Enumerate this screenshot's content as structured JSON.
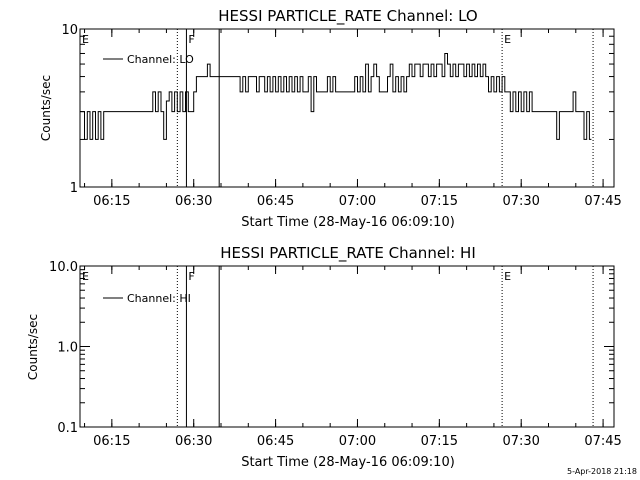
{
  "chart_data": [
    {
      "type": "line",
      "title": "HESSI PARTICLE_RATE Channel: LO",
      "xlabel": "Start Time (28-May-16 06:09:10)",
      "ylabel": "Counts/sec",
      "yscale": "log",
      "ylim": [
        1,
        10
      ],
      "xlim": [
        "06:09:10",
        "07:47:00"
      ],
      "x_ticks": [
        "06:15",
        "06:30",
        "06:45",
        "07:00",
        "07:15",
        "07:30",
        "07:45"
      ],
      "y_ticks": [
        "1",
        "10"
      ],
      "legend": {
        "label": "Channel: LO",
        "placement": "top-left"
      },
      "series": [
        {
          "name": "Channel: LO",
          "color": "#000000",
          "points": [
            [
              "06:09:10",
              3.0
            ],
            [
              "06:10:00",
              2.0
            ],
            [
              "06:10:30",
              3.0
            ],
            [
              "06:11:00",
              2.0
            ],
            [
              "06:11:30",
              3.0
            ],
            [
              "06:12:00",
              2.0
            ],
            [
              "06:12:30",
              3.0
            ],
            [
              "06:13:00",
              2.0
            ],
            [
              "06:13:30",
              3.0
            ],
            [
              "06:14:00",
              3.0
            ],
            [
              "06:22:00",
              3.0
            ],
            [
              "06:22:30",
              4.0
            ],
            [
              "06:23:00",
              3.0
            ],
            [
              "06:23:30",
              4.0
            ],
            [
              "06:24:00",
              3.0
            ],
            [
              "06:24:30",
              2.0
            ],
            [
              "06:25:00",
              3.5
            ],
            [
              "06:25:30",
              4.0
            ],
            [
              "06:26:00",
              3.0
            ],
            [
              "06:26:30",
              4.0
            ],
            [
              "06:27:00",
              3.0
            ],
            [
              "06:27:30",
              4.0
            ],
            [
              "06:28:00",
              3.0
            ],
            [
              "06:28:30",
              4.0
            ],
            [
              "06:29:00",
              3.0
            ],
            [
              "06:29:30",
              3.0
            ],
            [
              "06:30:00",
              4.0
            ],
            [
              "06:30:30",
              5.0
            ],
            [
              "06:32:00",
              5.0
            ],
            [
              "06:32:30",
              6.0
            ],
            [
              "06:33:00",
              5.0
            ],
            [
              "06:38:00",
              5.0
            ],
            [
              "06:38:30",
              4.0
            ],
            [
              "06:39:00",
              5.0
            ],
            [
              "06:39:30",
              4.0
            ],
            [
              "06:40:00",
              5.0
            ],
            [
              "06:41:00",
              5.0
            ],
            [
              "06:41:30",
              4.0
            ],
            [
              "06:42:00",
              5.0
            ],
            [
              "06:43:00",
              4.0
            ],
            [
              "06:43:30",
              5.0
            ],
            [
              "06:44:00",
              4.0
            ],
            [
              "06:44:30",
              5.0
            ],
            [
              "06:45:00",
              4.0
            ],
            [
              "06:45:30",
              5.0
            ],
            [
              "06:46:00",
              4.0
            ],
            [
              "06:46:30",
              5.0
            ],
            [
              "06:47:00",
              4.0
            ],
            [
              "06:47:30",
              5.0
            ],
            [
              "06:48:00",
              4.0
            ],
            [
              "06:48:30",
              5.0
            ],
            [
              "06:49:00",
              4.0
            ],
            [
              "06:49:30",
              5.0
            ],
            [
              "06:50:00",
              4.0
            ],
            [
              "06:51:00",
              5.0
            ],
            [
              "06:51:30",
              3.0
            ],
            [
              "06:52:00",
              5.0
            ],
            [
              "06:52:30",
              4.0
            ],
            [
              "06:54:00",
              4.0
            ],
            [
              "06:54:30",
              5.0
            ],
            [
              "06:55:00",
              4.0
            ],
            [
              "06:55:30",
              5.0
            ],
            [
              "06:56:00",
              4.0
            ],
            [
              "06:59:00",
              4.0
            ],
            [
              "06:59:30",
              5.0
            ],
            [
              "07:00:00",
              4.0
            ],
            [
              "07:00:30",
              5.0
            ],
            [
              "07:01:00",
              4.0
            ],
            [
              "07:01:30",
              6.0
            ],
            [
              "07:02:00",
              4.0
            ],
            [
              "07:02:30",
              5.0
            ],
            [
              "07:03:00",
              6.0
            ],
            [
              "07:03:30",
              5.0
            ],
            [
              "07:04:00",
              4.0
            ],
            [
              "07:05:00",
              4.0
            ],
            [
              "07:05:30",
              5.0
            ],
            [
              "07:06:00",
              6.0
            ],
            [
              "07:06:30",
              4.0
            ],
            [
              "07:07:00",
              5.0
            ],
            [
              "07:07:30",
              4.0
            ],
            [
              "07:08:00",
              5.0
            ],
            [
              "07:08:30",
              4.0
            ],
            [
              "07:09:00",
              5.0
            ],
            [
              "07:09:30",
              6.0
            ],
            [
              "07:10:00",
              5.0
            ],
            [
              "07:10:30",
              6.0
            ],
            [
              "07:11:00",
              6.0
            ],
            [
              "07:11:30",
              5.0
            ],
            [
              "07:12:00",
              6.0
            ],
            [
              "07:12:30",
              6.0
            ],
            [
              "07:13:00",
              5.0
            ],
            [
              "07:13:30",
              6.0
            ],
            [
              "07:14:00",
              5.0
            ],
            [
              "07:14:30",
              6.0
            ],
            [
              "07:15:00",
              6.0
            ],
            [
              "07:15:30",
              5.0
            ],
            [
              "07:16:00",
              7.0
            ],
            [
              "07:16:30",
              6.0
            ],
            [
              "07:17:00",
              5.0
            ],
            [
              "07:17:30",
              6.0
            ],
            [
              "07:18:00",
              5.0
            ],
            [
              "07:18:30",
              6.0
            ],
            [
              "07:19:00",
              6.0
            ],
            [
              "07:19:30",
              5.0
            ],
            [
              "07:20:00",
              6.0
            ],
            [
              "07:20:30",
              5.0
            ],
            [
              "07:21:00",
              6.0
            ],
            [
              "07:21:30",
              5.0
            ],
            [
              "07:22:00",
              6.0
            ],
            [
              "07:22:30",
              5.0
            ],
            [
              "07:23:00",
              6.0
            ],
            [
              "07:23:30",
              5.0
            ],
            [
              "07:24:00",
              4.0
            ],
            [
              "07:24:30",
              5.0
            ],
            [
              "07:25:00",
              4.0
            ],
            [
              "07:25:30",
              5.0
            ],
            [
              "07:26:00",
              4.0
            ],
            [
              "07:26:30",
              5.0
            ],
            [
              "07:27:00",
              4.0
            ],
            [
              "07:27:30",
              4.0
            ],
            [
              "07:28:00",
              3.0
            ],
            [
              "07:28:30",
              4.0
            ],
            [
              "07:29:00",
              3.0
            ],
            [
              "07:29:30",
              4.0
            ],
            [
              "07:30:00",
              3.0
            ],
            [
              "07:30:30",
              4.0
            ],
            [
              "07:31:00",
              3.0
            ],
            [
              "07:31:30",
              4.0
            ],
            [
              "07:32:00",
              3.0
            ],
            [
              "07:36:00",
              3.0
            ],
            [
              "07:36:30",
              2.0
            ],
            [
              "07:37:00",
              3.0
            ],
            [
              "07:39:00",
              3.0
            ],
            [
              "07:39:30",
              4.0
            ],
            [
              "07:40:00",
              3.0
            ],
            [
              "07:41:00",
              3.0
            ],
            [
              "07:41:30",
              2.0
            ],
            [
              "07:42:00",
              3.0
            ],
            [
              "07:42:30",
              2.0
            ]
          ]
        }
      ],
      "marker_lines": [
        {
          "time": "06:27:00",
          "style": "dotted",
          "label": ""
        },
        {
          "time": "06:28:40",
          "style": "solid",
          "label": "F"
        },
        {
          "time": "06:34:40",
          "style": "solid",
          "label": ""
        },
        {
          "time": "07:26:30",
          "style": "dotted",
          "label": "E"
        },
        {
          "time": "07:43:10",
          "style": "dotted",
          "label": ""
        },
        {
          "time": "06:09:10",
          "style": "none",
          "label": "E"
        }
      ]
    },
    {
      "type": "line",
      "title": "HESSI PARTICLE_RATE Channel: HI",
      "xlabel": "Start Time (28-May-16 06:09:10)",
      "ylabel": "Counts/sec",
      "yscale": "log",
      "ylim": [
        0.1,
        10
      ],
      "xlim": [
        "06:09:10",
        "07:47:00"
      ],
      "x_ticks": [
        "06:15",
        "06:30",
        "06:45",
        "07:00",
        "07:15",
        "07:30",
        "07:45"
      ],
      "y_ticks": [
        "0.1",
        "1.0",
        "10.0"
      ],
      "legend": {
        "label": "Channel: HI",
        "placement": "top-left"
      },
      "series": [
        {
          "name": "Channel: HI",
          "color": "#000000",
          "points": []
        }
      ],
      "marker_lines": [
        {
          "time": "06:27:00",
          "style": "dotted",
          "label": ""
        },
        {
          "time": "06:28:40",
          "style": "solid",
          "label": "F"
        },
        {
          "time": "06:34:40",
          "style": "solid",
          "label": ""
        },
        {
          "time": "07:26:30",
          "style": "dotted",
          "label": "E"
        },
        {
          "time": "07:43:10",
          "style": "dotted",
          "label": ""
        },
        {
          "time": "06:09:10",
          "style": "none",
          "label": "E"
        }
      ]
    }
  ],
  "footer": {
    "date_stamp": "5-Apr-2018 21:18"
  }
}
